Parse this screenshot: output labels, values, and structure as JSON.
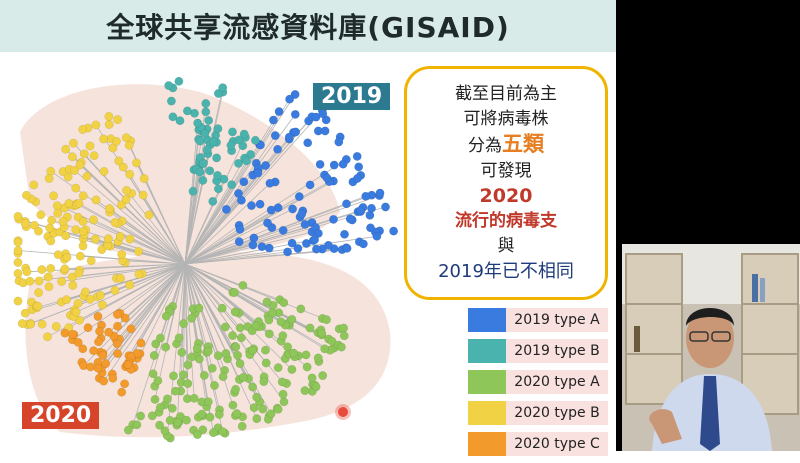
{
  "slide": {
    "title": "全球共享流感資料庫(GISAID)",
    "badge_2019": "2019",
    "badge_2020": "2020"
  },
  "callout": {
    "line1": "截至目前為主",
    "line2": "可將病毒株",
    "line3_prefix": "分為",
    "line3_highlight": "五類",
    "line4": "可發現",
    "line5": "2020",
    "line6": "流行的病毒支",
    "line7": "與",
    "line8": "2019年已不相同"
  },
  "legend": {
    "items": [
      {
        "label": "2019 type A",
        "color": "#3a7be0"
      },
      {
        "label": "2019 type B",
        "color": "#4ab3ad"
      },
      {
        "label": "2020 type A",
        "color": "#8fc65a"
      },
      {
        "label": "2020 type B",
        "color": "#f2d245"
      },
      {
        "label": "2020 type C",
        "color": "#f39a2c"
      }
    ]
  },
  "colors": {
    "badge_2019": "#2b7a8f",
    "badge_2020": "#d6452a",
    "callout_border": "#f0b400",
    "shade": "#f6e4dc"
  }
}
